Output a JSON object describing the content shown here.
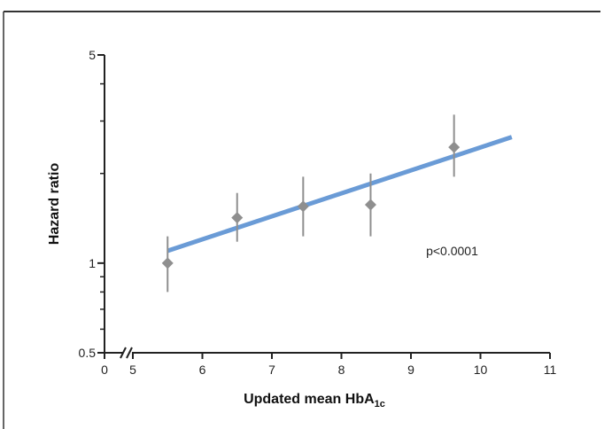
{
  "chart_data": {
    "type": "scatter",
    "title": "",
    "xlabel": "Updated mean HbA",
    "xlabel_subscript": "1c",
    "ylabel": "Hazard ratio",
    "y_scale": "log",
    "x_axis_break": true,
    "y_axis_break": true,
    "xlim": [
      5,
      11
    ],
    "ylim": [
      0.5,
      5
    ],
    "x_ticks": [
      {
        "value": 0,
        "label": "0"
      },
      {
        "value": 5,
        "label": "5"
      },
      {
        "value": 6,
        "label": "6"
      },
      {
        "value": 7,
        "label": "7"
      },
      {
        "value": 8,
        "label": "8"
      },
      {
        "value": 9,
        "label": "9"
      },
      {
        "value": 10,
        "label": "10"
      },
      {
        "value": 11,
        "label": "11"
      }
    ],
    "y_labeled_ticks": [
      {
        "value": 0.5,
        "label": "0.5"
      },
      {
        "value": 1,
        "label": "1"
      },
      {
        "value": 5,
        "label": "5"
      }
    ],
    "y_minor_ticks": [
      0.6,
      0.7,
      0.8,
      0.9,
      2,
      3,
      4
    ],
    "points": [
      {
        "x": 5.5,
        "y": 1.0,
        "lower": 0.8,
        "upper": 1.23
      },
      {
        "x": 6.5,
        "y": 1.42,
        "lower": 1.18,
        "upper": 1.72
      },
      {
        "x": 7.45,
        "y": 1.55,
        "lower": 1.23,
        "upper": 1.95
      },
      {
        "x": 8.42,
        "y": 1.57,
        "lower": 1.23,
        "upper": 2.0
      },
      {
        "x": 9.62,
        "y": 2.45,
        "lower": 1.95,
        "upper": 3.15
      }
    ],
    "fit_line": {
      "x": [
        5.5,
        10.45
      ],
      "y": [
        1.1,
        2.65
      ]
    },
    "annotation": "p<0.0001",
    "annotation_position": {
      "x": 9.6,
      "y": 1.1
    },
    "colors": {
      "points": "#8f8f8f",
      "error_bars": "#8f8f8f",
      "fit_line": "#6a9bd6",
      "axis": "#222222",
      "frame": "#333333"
    },
    "grid": false,
    "legend": "none"
  }
}
